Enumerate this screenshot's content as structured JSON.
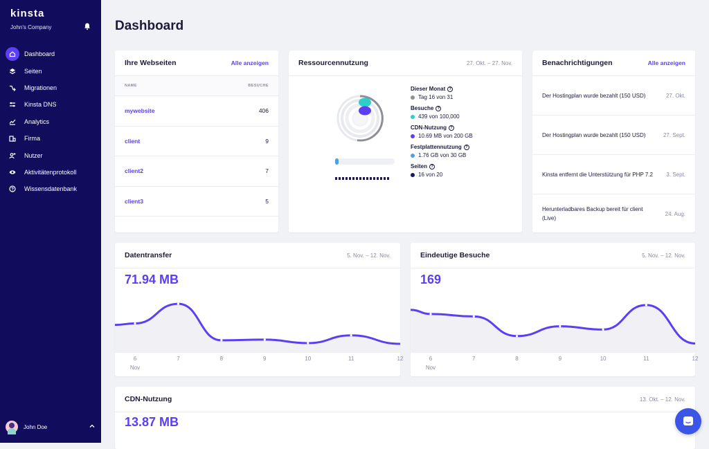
{
  "brand": {
    "logo": "kinsta",
    "company": "John's Company"
  },
  "sidebar": {
    "items": [
      {
        "label": "Dashboard",
        "icon": "home-icon",
        "active": true
      },
      {
        "label": "Seiten",
        "icon": "layers-icon"
      },
      {
        "label": "Migrationen",
        "icon": "migration-icon"
      },
      {
        "label": "Kinsta DNS",
        "icon": "dns-icon"
      },
      {
        "label": "Analytics",
        "icon": "analytics-icon"
      },
      {
        "label": "Firma",
        "icon": "company-icon"
      },
      {
        "label": "Nutzer",
        "icon": "add-user-icon"
      },
      {
        "label": "Aktivitätenprotokoll",
        "icon": "eye-icon"
      },
      {
        "label": "Wissensdatenbank",
        "icon": "help-icon"
      }
    ],
    "user": "John Doe"
  },
  "page": {
    "title": "Dashboard"
  },
  "websites": {
    "title": "Ihre Webseiten",
    "link": "Alle anzeigen",
    "col_name": "NAME",
    "col_visits": "BESUCHE",
    "rows": [
      {
        "name": "mywebsite",
        "visits": "406"
      },
      {
        "name": "client",
        "visits": "9"
      },
      {
        "name": "client2",
        "visits": "7"
      },
      {
        "name": "client3",
        "visits": "5"
      }
    ]
  },
  "resources": {
    "title": "Ressourcennutzung",
    "date": "27. Okt. – 27. Nov.",
    "items": [
      {
        "label": "Dieser Monat",
        "value": "Tag 16 von 31",
        "color": "#8e8e98"
      },
      {
        "label": "Besuche",
        "value": "439 von 100,000",
        "color": "#2ecfc8"
      },
      {
        "label": "CDN-Nutzung",
        "value": "10.69 MB von 200 GB",
        "color": "#5b3ff3"
      },
      {
        "label": "Festplattennutzung",
        "value": "1.76 GB von 30 GB",
        "color": "#4d9fe6"
      },
      {
        "label": "Seiten",
        "value": "16 von 20",
        "color": "#1a1a5e"
      }
    ],
    "disk_fraction": 0.06,
    "pages_used": 16,
    "pages_total": 20
  },
  "notifications": {
    "title": "Benachrichtigungen",
    "link": "Alle anzeigen",
    "rows": [
      {
        "text": "Der Hostingplan wurde bezahlt (150 USD)",
        "date": "27. Okt."
      },
      {
        "text": "Der Hostingplan wurde bezahlt (150 USD)",
        "date": "27. Sept."
      },
      {
        "text": "Kinsta entfernt die Unterstützung für PHP 7.2",
        "date": "3. Sept."
      },
      {
        "text": "Herunterladbares Backup bereit für client (Live)",
        "date": "24. Aug."
      }
    ]
  },
  "transfer": {
    "title": "Datentransfer",
    "date": "5. Nov. – 12. Nov.",
    "total": "71.94 MB"
  },
  "visits": {
    "title": "Eindeutige Besuche",
    "date": "5. Nov. – 12. Nov.",
    "total": "169"
  },
  "cdn": {
    "title": "CDN-Nutzung",
    "date": "13. Okt. – 12. Nov.",
    "total": "13.87 MB"
  },
  "chart_data": [
    {
      "type": "area",
      "title": "Datentransfer",
      "x": [
        "5",
        "6",
        "7",
        "8",
        "9",
        "10",
        "11",
        "12"
      ],
      "tick_labels": [
        "6",
        "7",
        "8",
        "9",
        "10",
        "11",
        "12"
      ],
      "tick_sublabel": "Nov",
      "values": [
        30,
        32,
        60,
        8,
        9,
        4,
        15,
        3
      ],
      "ylim": [
        0,
        70
      ]
    },
    {
      "type": "area",
      "title": "Eindeutige Besuche",
      "x": [
        "5",
        "6",
        "7",
        "8",
        "9",
        "10",
        "11",
        "12"
      ],
      "tick_labels": [
        "6",
        "7",
        "8",
        "9",
        "10",
        "11",
        "12"
      ],
      "tick_sublabel": "Nov",
      "values": [
        44,
        39,
        36,
        12,
        24,
        20,
        50,
        3
      ],
      "ylim": [
        0,
        60
      ]
    }
  ]
}
